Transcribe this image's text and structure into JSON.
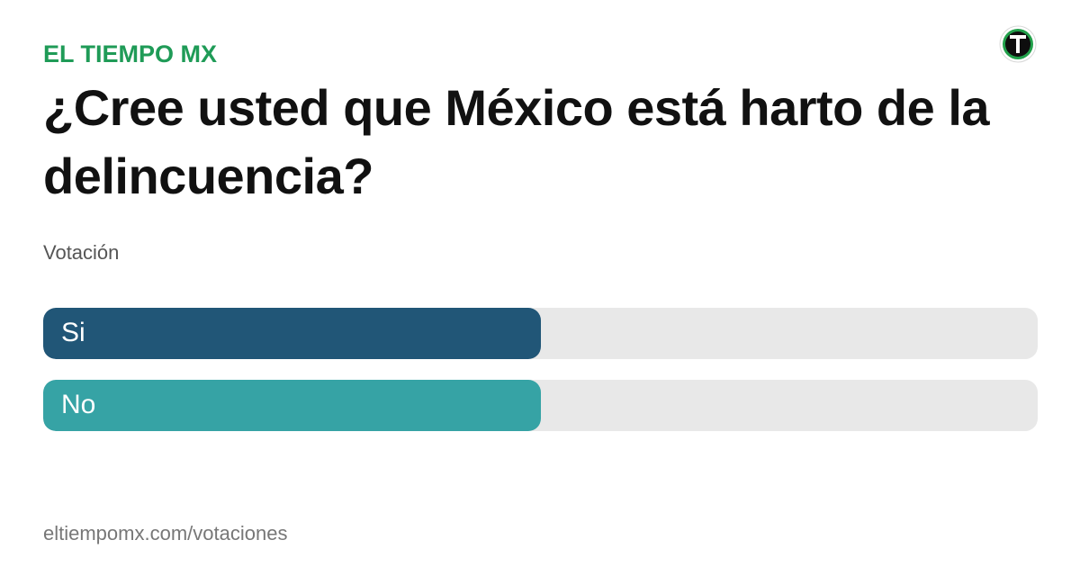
{
  "header": {
    "brand": "EL TIEMPO MX",
    "logo_icon": "el-tiempo-t-logo-icon",
    "brand_color": "#1f9b57"
  },
  "poll": {
    "question": "¿Cree usted que México está harto de la delincuencia?",
    "subtitle": "Votación",
    "options": [
      {
        "label": "Si",
        "fraction": 0.5,
        "color": "#215677"
      },
      {
        "label": "No",
        "fraction": 0.5,
        "color": "#36a3a5"
      }
    ]
  },
  "footer": {
    "url": "eltiempomx.com/votaciones"
  }
}
